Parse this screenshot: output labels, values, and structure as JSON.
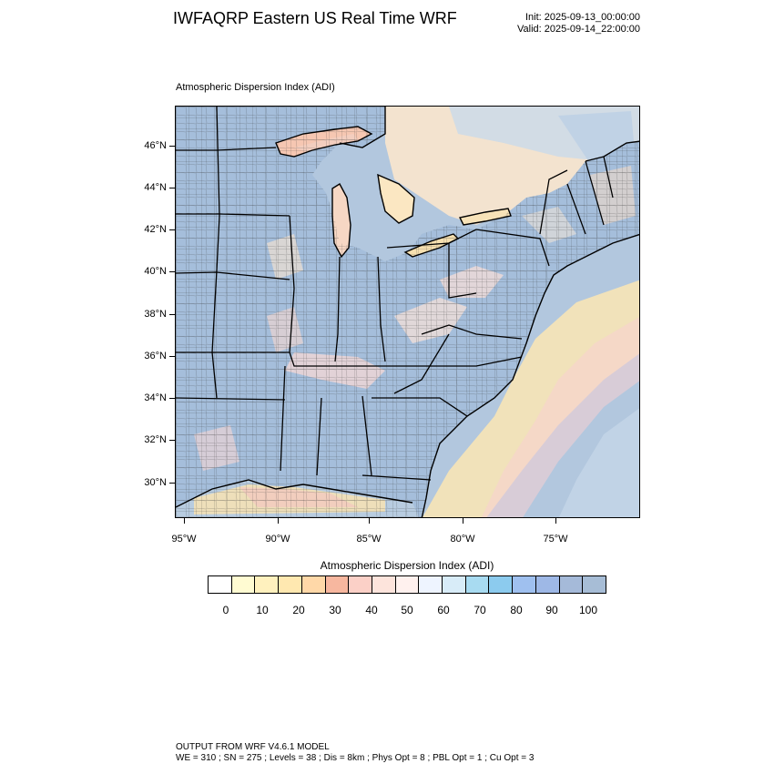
{
  "header": {
    "title": "IWFAQRP Eastern US Real Time WRF",
    "init": "Init: 2025-09-13_00:00:00",
    "valid": "Valid: 2025-09-14_22:00:00"
  },
  "map": {
    "subtitle": "Atmospheric Dispersion Index   (ADI)",
    "lat_labels": [
      "46°N",
      "44°N",
      "42°N",
      "40°N",
      "38°N",
      "36°N",
      "34°N",
      "32°N",
      "30°N"
    ],
    "lon_labels": [
      "95°W",
      "90°W",
      "85°W",
      "80°W",
      "75°W"
    ],
    "colors": {
      "ocean": "#a9c3dc",
      "land_default": "#a5bedb",
      "county_lines": "#333333",
      "state_lines": "#000000"
    }
  },
  "colorbar": {
    "title": "Atmospheric Dispersion Index  (ADI)",
    "labels": [
      "0",
      "10",
      "20",
      "30",
      "40",
      "50",
      "60",
      "70",
      "80",
      "90",
      "100"
    ],
    "colors": [
      "#ffffff",
      "#fffbd2",
      "#fff1be",
      "#ffe8b0",
      "#ffd8a8",
      "#f7b79f",
      "#fbd0c7",
      "#fde4dc",
      "#fff1ee",
      "#eef4ff",
      "#d8ecf8",
      "#a8dbf1",
      "#8ccbee",
      "#9fc0ef",
      "#9eb8e6",
      "#a5bad9",
      "#a7bdd6"
    ]
  },
  "footer": {
    "line1": "OUTPUT FROM WRF V4.6.1 MODEL",
    "line2": "WE = 310 ; SN = 275 ; Levels = 38 ; Dis = 8km ; Phys Opt = 8 ; PBL Opt = 1 ; Cu Opt = 3"
  }
}
